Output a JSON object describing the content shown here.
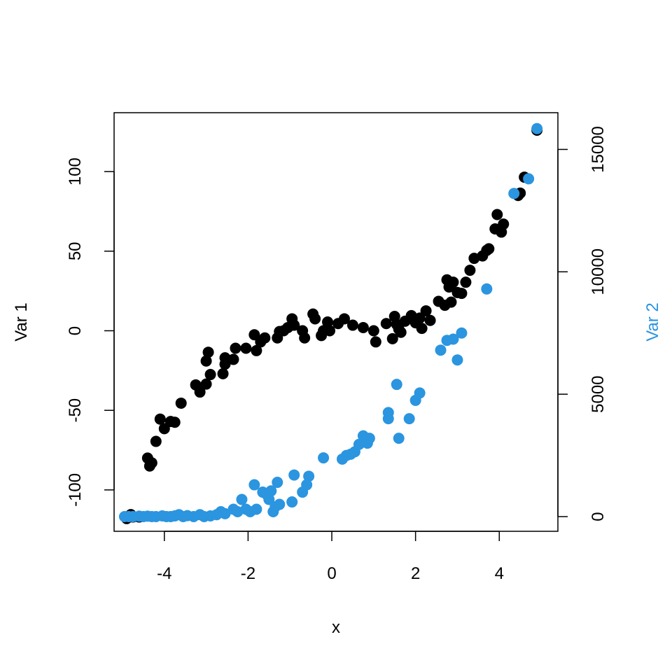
{
  "chart_data": {
    "type": "scatter",
    "xlabel": "x",
    "ylabel": "Var 1",
    "ylabel_right": "Var 2",
    "xlim": [
      -5.2,
      5.4
    ],
    "ylim_left": [
      -126,
      137
    ],
    "ylim_right": [
      -600,
      16500
    ],
    "x_ticks": [
      -4,
      -2,
      0,
      2,
      4
    ],
    "y_left_ticks": [
      -100,
      -50,
      0,
      50,
      100
    ],
    "y_right_ticks": [
      0,
      5000,
      10000,
      15000
    ],
    "grid": false,
    "colors": {
      "var1": "#000000",
      "var2": "#2b95e0",
      "axis": "#000000"
    },
    "series": [
      {
        "axis": "left",
        "color": "#000000",
        "points": [
          [
            -4.9,
            -118
          ],
          [
            -4.8,
            -115.5
          ],
          [
            -4.75,
            -117
          ],
          [
            -4.6,
            -117
          ],
          [
            -4.4,
            -80
          ],
          [
            -4.35,
            -85
          ],
          [
            -4.3,
            -83
          ],
          [
            -4.2,
            -69.5
          ],
          [
            -4.1,
            -55.5
          ],
          [
            -4.0,
            -61.5
          ],
          [
            -3.85,
            -57
          ],
          [
            -3.75,
            -57.5
          ],
          [
            -3.6,
            -45.5
          ],
          [
            -3.25,
            -34
          ],
          [
            -3.15,
            -38.5
          ],
          [
            -3.0,
            -33.5
          ],
          [
            -3.0,
            -19
          ],
          [
            -2.95,
            -13.5
          ],
          [
            -2.9,
            -27.5
          ],
          [
            -2.6,
            -27
          ],
          [
            -2.55,
            -21
          ],
          [
            -2.55,
            -17
          ],
          [
            -2.35,
            -18
          ],
          [
            -2.3,
            -11
          ],
          [
            -2.05,
            -11
          ],
          [
            -1.85,
            -2.5
          ],
          [
            -1.8,
            -12.5
          ],
          [
            -1.7,
            -7
          ],
          [
            -1.6,
            -4.5
          ],
          [
            -1.3,
            -4.5
          ],
          [
            -1.25,
            -0.5
          ],
          [
            -1.15,
            0
          ],
          [
            -1.05,
            2
          ],
          [
            -0.95,
            7.5
          ],
          [
            -0.9,
            3.5
          ],
          [
            -0.7,
            0
          ],
          [
            -0.65,
            -4.5
          ],
          [
            -0.45,
            10.5
          ],
          [
            -0.4,
            7.5
          ],
          [
            -0.25,
            -3
          ],
          [
            -0.2,
            0
          ],
          [
            -0.1,
            5.5
          ],
          [
            -0.05,
            0
          ],
          [
            0.15,
            4.5
          ],
          [
            0.3,
            7.5
          ],
          [
            0.5,
            3.5
          ],
          [
            0.75,
            2
          ],
          [
            1.0,
            0
          ],
          [
            1.05,
            -7
          ],
          [
            1.3,
            4.5
          ],
          [
            1.45,
            -5
          ],
          [
            1.5,
            9
          ],
          [
            1.55,
            4
          ],
          [
            1.6,
            1
          ],
          [
            1.65,
            -1
          ],
          [
            1.75,
            6
          ],
          [
            1.9,
            9.5
          ],
          [
            2.0,
            5
          ],
          [
            2.1,
            8
          ],
          [
            2.15,
            1.5
          ],
          [
            2.25,
            12.5
          ],
          [
            2.35,
            6.5
          ],
          [
            2.55,
            18.5
          ],
          [
            2.7,
            16
          ],
          [
            2.75,
            32
          ],
          [
            2.8,
            27.5
          ],
          [
            2.85,
            18
          ],
          [
            2.9,
            30.5
          ],
          [
            3.0,
            24
          ],
          [
            3.1,
            23.5
          ],
          [
            3.2,
            30.5
          ],
          [
            3.3,
            38
          ],
          [
            3.4,
            45.5
          ],
          [
            3.6,
            47
          ],
          [
            3.7,
            50.5
          ],
          [
            3.75,
            51.5
          ],
          [
            3.9,
            64
          ],
          [
            3.95,
            73
          ],
          [
            4.05,
            62
          ],
          [
            4.1,
            67
          ],
          [
            4.45,
            85
          ],
          [
            4.5,
            86.5
          ],
          [
            4.6,
            96.5
          ],
          [
            4.9,
            126
          ]
        ]
      },
      {
        "axis": "right",
        "color": "#2b95e0",
        "points": [
          [
            -4.95,
            0
          ],
          [
            -4.85,
            0
          ],
          [
            -4.75,
            0
          ],
          [
            -4.6,
            20
          ],
          [
            -4.5,
            0
          ],
          [
            -4.4,
            20
          ],
          [
            -4.3,
            0
          ],
          [
            -4.2,
            0
          ],
          [
            -4.05,
            30
          ],
          [
            -3.95,
            0
          ],
          [
            -3.85,
            0
          ],
          [
            -3.75,
            30
          ],
          [
            -3.65,
            80
          ],
          [
            -3.55,
            0
          ],
          [
            -3.45,
            40
          ],
          [
            -3.3,
            0
          ],
          [
            -3.15,
            80
          ],
          [
            -3.05,
            0
          ],
          [
            -2.9,
            30
          ],
          [
            -2.75,
            80
          ],
          [
            -2.65,
            200
          ],
          [
            -2.55,
            120
          ],
          [
            -2.35,
            300
          ],
          [
            -2.25,
            200
          ],
          [
            -2.15,
            700
          ],
          [
            -2.05,
            300
          ],
          [
            -1.95,
            200
          ],
          [
            -1.85,
            1300
          ],
          [
            -1.8,
            300
          ],
          [
            -1.65,
            1000
          ],
          [
            -1.55,
            900
          ],
          [
            -1.5,
            700
          ],
          [
            -1.45,
            1050
          ],
          [
            -1.4,
            200
          ],
          [
            -1.35,
            400
          ],
          [
            -1.3,
            1400
          ],
          [
            -1.25,
            500
          ],
          [
            -0.95,
            600
          ],
          [
            -0.9,
            1700
          ],
          [
            -0.7,
            1000
          ],
          [
            -0.6,
            1300
          ],
          [
            -0.55,
            1650
          ],
          [
            -0.2,
            2400
          ],
          [
            0.25,
            2350
          ],
          [
            0.35,
            2500
          ],
          [
            0.45,
            2550
          ],
          [
            0.55,
            2650
          ],
          [
            0.65,
            2950
          ],
          [
            0.75,
            3300
          ],
          [
            0.8,
            3050
          ],
          [
            0.85,
            3000
          ],
          [
            0.9,
            3200
          ],
          [
            1.35,
            4000
          ],
          [
            1.35,
            4250
          ],
          [
            1.55,
            5400
          ],
          [
            1.6,
            3200
          ],
          [
            1.85,
            4000
          ],
          [
            2.0,
            4750
          ],
          [
            2.1,
            5050
          ],
          [
            2.6,
            6800
          ],
          [
            2.75,
            7200
          ],
          [
            2.9,
            7250
          ],
          [
            3.0,
            6400
          ],
          [
            3.1,
            7500
          ],
          [
            3.7,
            9300
          ],
          [
            4.35,
            13200
          ],
          [
            4.7,
            13800
          ],
          [
            4.9,
            15850
          ]
        ]
      }
    ]
  }
}
